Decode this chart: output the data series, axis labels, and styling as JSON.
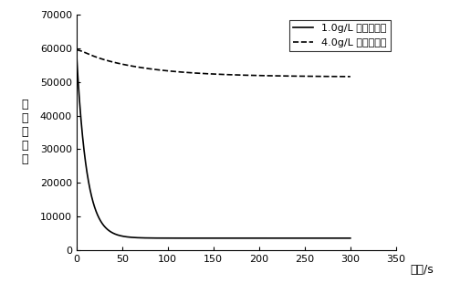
{
  "title": "",
  "xlabel": "时间/s",
  "ylabel": "散\n射\n光\n强\n度",
  "xlim": [
    0,
    350
  ],
  "ylim": [
    0,
    70000
  ],
  "xticks": [
    0,
    50,
    100,
    150,
    200,
    250,
    300,
    350
  ],
  "yticks": [
    0,
    10000,
    20000,
    30000,
    40000,
    50000,
    60000,
    70000
  ],
  "line1_label": "1.0g/L 氯化钠溶液",
  "line2_label": "4.0g/L 氯化钠溶液",
  "line1_color": "#000000",
  "line2_color": "#000000",
  "background_color": "#ffffff",
  "A1": 55000,
  "k1": 0.09,
  "C1": 3500,
  "C2": 51500,
  "A2": 8000,
  "k2": 0.015,
  "B2": 120,
  "k2b": 0.15
}
